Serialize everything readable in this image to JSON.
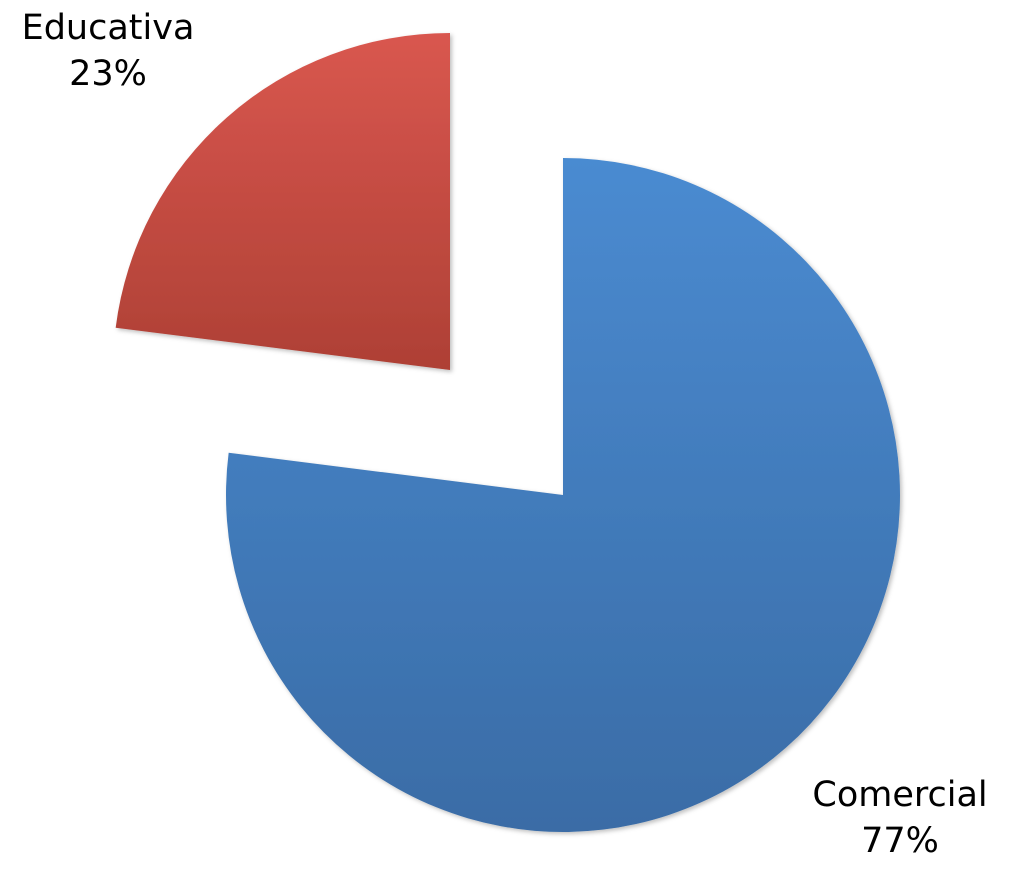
{
  "chart_data": {
    "type": "pie",
    "start_angle_deg": 0,
    "direction": "clockwise",
    "exploded": true,
    "legend": "none",
    "slices": [
      {
        "label": "Comercial",
        "value": 77,
        "value_label": "77%",
        "color": "#4A8BD1",
        "color_dark": "#3A6CA6"
      },
      {
        "label": "Educativa",
        "value": 23,
        "value_label": "23%",
        "color": "#D9574F",
        "color_dark": "#AE4035"
      }
    ]
  }
}
